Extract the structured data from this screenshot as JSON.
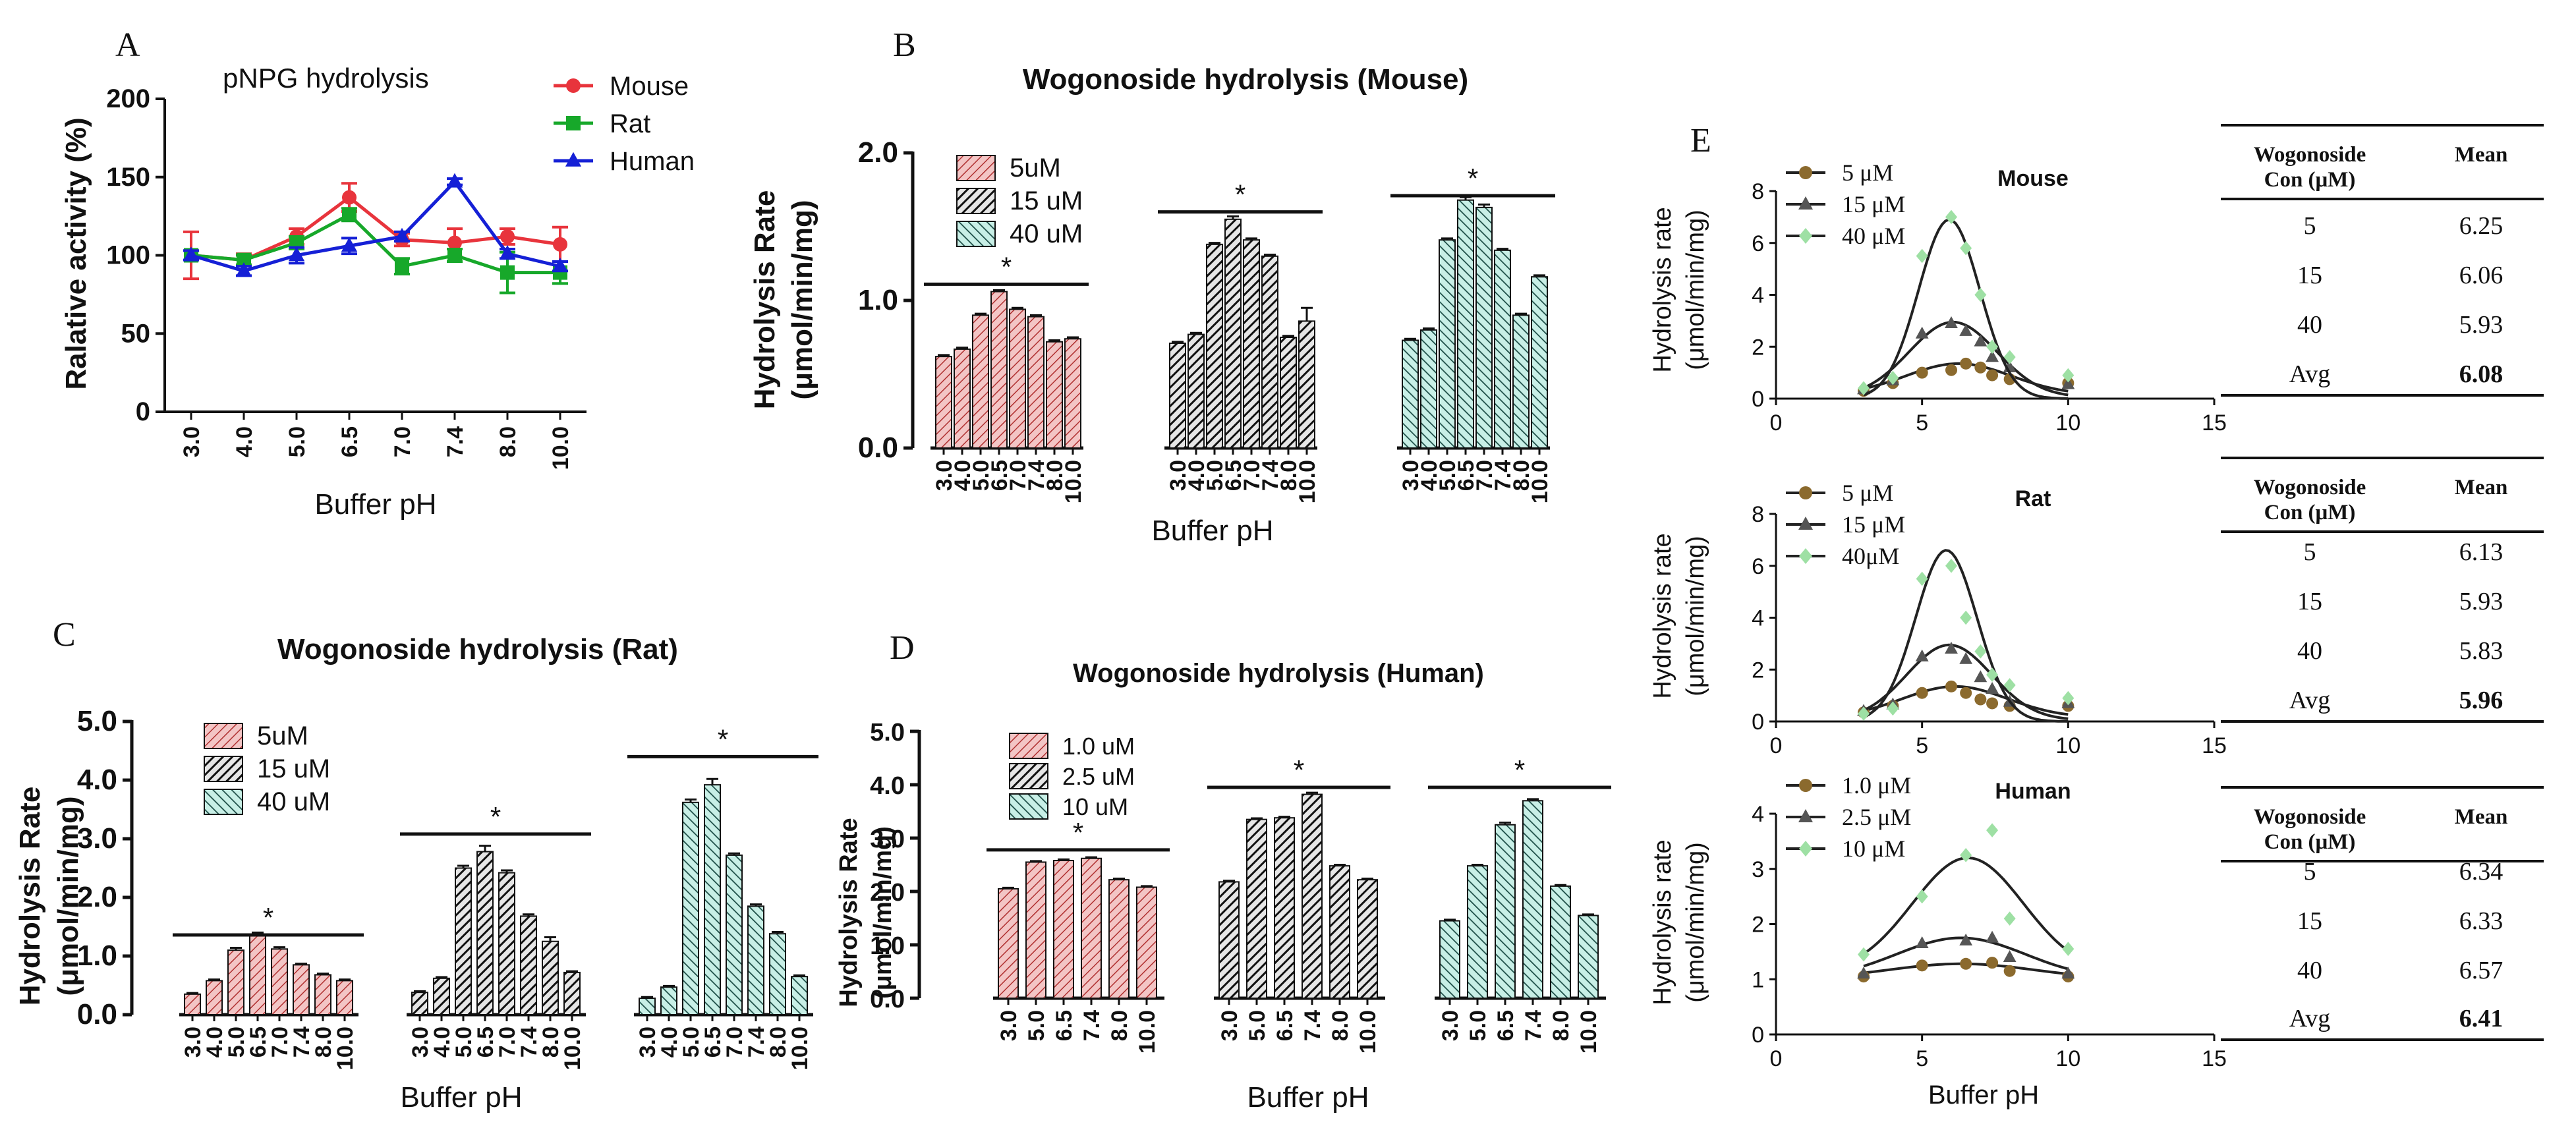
{
  "panels": {
    "A": {
      "letter": "A",
      "chart_data": {
        "type": "line",
        "title": "pNPG hydrolysis",
        "xlabel": "Buffer pH",
        "ylabel": "Ralative activity (%)",
        "categories": [
          "3.0",
          "4.0",
          "5.0",
          "6.5",
          "7.0",
          "7.4",
          "8.0",
          "10.0"
        ],
        "ylim": [
          0,
          200
        ],
        "yticks": [
          0,
          50,
          100,
          150,
          200
        ],
        "legend_position": "top-right",
        "series": [
          {
            "name": "Mouse",
            "color": "#e8343c",
            "marker": "circle",
            "values": [
              100,
              97,
              112,
              137,
              110,
              108,
              112,
              107
            ],
            "errors": [
              15,
              4,
              5,
              9,
              4,
              9,
              5,
              11
            ]
          },
          {
            "name": "Rat",
            "color": "#17a82a",
            "marker": "square",
            "values": [
              100,
              97,
              108,
              126,
              93,
              100,
              89,
              89
            ],
            "errors": [
              3,
              3,
              4,
              4,
              5,
              4,
              13,
              7
            ]
          },
          {
            "name": "Human",
            "color": "#1520d6",
            "marker": "triangle",
            "values": [
              100,
              90,
              100,
              106,
              112,
              147,
              101,
              93
            ],
            "errors": [
              3,
              3,
              5,
              5,
              3,
              2,
              3,
              3
            ]
          }
        ]
      }
    },
    "B": {
      "letter": "B",
      "chart_data": {
        "type": "bar",
        "title": "Wogonoside hydrolysis (Mouse)",
        "xlabel": "Buffer pH",
        "ylabel_line1": "Hydrolysis Rate",
        "ylabel_line2": "(μmol/min/mg)",
        "ylim": [
          0,
          2.0
        ],
        "yticks": [
          "0.0",
          "1.0",
          "2.0"
        ],
        "legend_position": "top-left",
        "significance": "*",
        "groups": [
          {
            "name": "5uM",
            "pattern": "pink",
            "categories": [
              "3.0",
              "4.0",
              "5.0",
              "6.5",
              "7.0",
              "7.4",
              "8.0",
              "10.0"
            ],
            "values": [
              0.62,
              0.67,
              0.9,
              1.06,
              0.94,
              0.89,
              0.72,
              0.74
            ],
            "errors": [
              0.01,
              0.01,
              0.01,
              0.01,
              0.01,
              0.01,
              0.01,
              0.01
            ]
          },
          {
            "name": "15 uM",
            "pattern": "dark",
            "categories": [
              "3.0",
              "4.0",
              "5.0",
              "6.5",
              "7.0",
              "7.4",
              "8.0",
              "10.0"
            ],
            "values": [
              0.71,
              0.77,
              1.38,
              1.55,
              1.41,
              1.3,
              0.75,
              0.86
            ],
            "errors": [
              0.01,
              0.01,
              0.01,
              0.02,
              0.01,
              0.01,
              0.01,
              0.09
            ]
          },
          {
            "name": "40 uM",
            "pattern": "teal",
            "categories": [
              "3.0",
              "4.0",
              "5.0",
              "6.5",
              "7.0",
              "7.4",
              "8.0",
              "10.0"
            ],
            "values": [
              0.73,
              0.8,
              1.41,
              1.68,
              1.63,
              1.34,
              0.9,
              1.16
            ],
            "errors": [
              0.01,
              0.01,
              0.01,
              0.02,
              0.02,
              0.01,
              0.01,
              0.01
            ]
          }
        ]
      }
    },
    "C": {
      "letter": "C",
      "chart_data": {
        "type": "bar",
        "title": "Wogonoside hydrolysis (Rat)",
        "xlabel": "Buffer pH",
        "ylabel_line1": "Hydrolysis Rate",
        "ylabel_line2": "(μmol/min/mg)",
        "ylim": [
          0,
          5.0
        ],
        "yticks": [
          "0.0",
          "1.0",
          "2.0",
          "3.0",
          "4.0",
          "5.0"
        ],
        "legend_position": "top-left",
        "significance": "*",
        "groups": [
          {
            "name": "5uM",
            "pattern": "pink",
            "categories": [
              "3.0",
              "4.0",
              "5.0",
              "6.5",
              "7.0",
              "7.4",
              "8.0",
              "10.0"
            ],
            "values": [
              0.35,
              0.58,
              1.1,
              1.35,
              1.12,
              0.85,
              0.68,
              0.58
            ],
            "errors": [
              0.02,
              0.02,
              0.04,
              0.05,
              0.03,
              0.02,
              0.02,
              0.02
            ]
          },
          {
            "name": "15 uM",
            "pattern": "dark",
            "categories": [
              "3.0",
              "4.0",
              "5.0",
              "6.5",
              "7.0",
              "7.4",
              "8.0",
              "10.0"
            ],
            "values": [
              0.38,
              0.62,
              2.5,
              2.78,
              2.42,
              1.68,
              1.25,
              0.72
            ],
            "errors": [
              0.02,
              0.02,
              0.04,
              0.1,
              0.04,
              0.03,
              0.07,
              0.02
            ]
          },
          {
            "name": "40 uM",
            "pattern": "teal",
            "categories": [
              "3.0",
              "4.0",
              "5.0",
              "6.5",
              "7.0",
              "7.4",
              "8.0",
              "10.0"
            ],
            "values": [
              0.28,
              0.47,
              3.62,
              3.92,
              2.72,
              1.85,
              1.38,
              0.65
            ],
            "errors": [
              0.02,
              0.02,
              0.05,
              0.1,
              0.03,
              0.03,
              0.03,
              0.02
            ]
          }
        ]
      }
    },
    "D": {
      "letter": "D",
      "chart_data": {
        "type": "bar",
        "title": "Wogonoside hydrolysis (Human)",
        "xlabel": "Buffer pH",
        "ylabel_line1": "Hydrolysis Rate",
        "ylabel_line2": "(μmol/min/mg)",
        "ylim": [
          0,
          5.0
        ],
        "yticks": [
          "0.0",
          "1.0",
          "2.0",
          "3.0",
          "4.0",
          "5.0"
        ],
        "legend_position": "top-left",
        "significance": "*",
        "groups": [
          {
            "name": "1.0 uM",
            "pattern": "pink",
            "categories": [
              "3.0",
              "5.0",
              "6.5",
              "7.4",
              "8.0",
              "10.0"
            ],
            "values": [
              2.05,
              2.55,
              2.58,
              2.62,
              2.22,
              2.08
            ],
            "errors": [
              0.02,
              0.02,
              0.02,
              0.02,
              0.02,
              0.02
            ]
          },
          {
            "name": "2.5 uM",
            "pattern": "dark",
            "categories": [
              "3.0",
              "5.0",
              "6.5",
              "7.4",
              "8.0",
              "10.0"
            ],
            "values": [
              2.18,
              3.35,
              3.38,
              3.82,
              2.48,
              2.22
            ],
            "errors": [
              0.02,
              0.02,
              0.02,
              0.03,
              0.02,
              0.02
            ]
          },
          {
            "name": "10 uM",
            "pattern": "teal",
            "categories": [
              "3.0",
              "5.0",
              "6.5",
              "7.4",
              "8.0",
              "10.0"
            ],
            "values": [
              1.45,
              2.48,
              3.25,
              3.7,
              2.1,
              1.55
            ],
            "errors": [
              0.02,
              0.02,
              0.04,
              0.03,
              0.02,
              0.02
            ]
          }
        ]
      }
    },
    "E": {
      "letter": "E",
      "xlabel": "Buffer pH",
      "ylabel_line1": "Hydrolysis rate",
      "ylabel_line2": "(μmol/min/mg)",
      "table_header": {
        "col1_line1": "Wogonoside",
        "col1_line2": "Con (μM)",
        "col2": "Mean"
      },
      "subplots": [
        {
          "chart_data": {
            "type": "scatter",
            "title": "Mouse",
            "xlim": [
              0,
              15
            ],
            "xticks": [
              "0",
              "5",
              "10",
              "15"
            ],
            "ylim": [
              0,
              8
            ],
            "yticks": [
              "0",
              "2",
              "4",
              "6",
              "8"
            ],
            "series": [
              {
                "name": "5 μM",
                "color": "#8b6a2e",
                "marker": "circle",
                "x": [
                  3,
                  4,
                  5,
                  6,
                  6.5,
                  7,
                  7.4,
                  8,
                  10
                ],
                "y": [
                  0.3,
                  0.6,
                  1.0,
                  1.1,
                  1.35,
                  1.2,
                  0.9,
                  0.75,
                  0.6
                ],
                "fit": {
                  "amp": 1.2,
                  "mu": 6.25,
                  "sigma": 1.8,
                  "base": 0.15
                }
              },
              {
                "name": "15 μM",
                "color": "#555555",
                "marker": "triangle",
                "x": [
                  3,
                  4,
                  5,
                  6,
                  6.5,
                  7,
                  7.4,
                  8,
                  10
                ],
                "y": [
                  0.35,
                  0.7,
                  2.5,
                  2.9,
                  2.6,
                  2.2,
                  1.6,
                  1.2,
                  0.55
                ],
                "fit": {
                  "amp": 2.9,
                  "mu": 6.06,
                  "sigma": 1.5,
                  "base": 0.05
                }
              },
              {
                "name": "40 μM",
                "color": "#9ee0a4",
                "marker": "diamond",
                "x": [
                  3,
                  4,
                  5,
                  6,
                  6.5,
                  7,
                  7.4,
                  8,
                  10
                ],
                "y": [
                  0.4,
                  0.8,
                  5.5,
                  7.0,
                  5.8,
                  4.0,
                  2.0,
                  1.6,
                  0.9
                ],
                "fit": {
                  "amp": 6.9,
                  "mu": 5.93,
                  "sigma": 1.05,
                  "base": 0.0
                }
              }
            ]
          },
          "table": [
            {
              "con": "5",
              "mean": "6.25"
            },
            {
              "con": "15",
              "mean": "6.06"
            },
            {
              "con": "40",
              "mean": "5.93"
            },
            {
              "con": "Avg",
              "mean": "6.08"
            }
          ]
        },
        {
          "chart_data": {
            "type": "scatter",
            "title": "Rat",
            "xlim": [
              0,
              15
            ],
            "xticks": [
              "0",
              "5",
              "10",
              "15"
            ],
            "ylim": [
              0,
              8
            ],
            "yticks": [
              "0",
              "2",
              "4",
              "6",
              "8"
            ],
            "series": [
              {
                "name": "5 μM",
                "color": "#8b6a2e",
                "marker": "circle",
                "x": [
                  3,
                  4,
                  5,
                  6,
                  6.5,
                  7,
                  7.4,
                  8,
                  10
                ],
                "y": [
                  0.35,
                  0.6,
                  1.1,
                  1.35,
                  1.1,
                  0.85,
                  0.7,
                  0.6,
                  0.6
                ],
                "fit": {
                  "amp": 1.2,
                  "mu": 6.13,
                  "sigma": 1.8,
                  "base": 0.15
                }
              },
              {
                "name": "15 μM",
                "color": "#555555",
                "marker": "triangle",
                "x": [
                  3,
                  4,
                  5,
                  6,
                  6.5,
                  7,
                  7.4,
                  8,
                  10
                ],
                "y": [
                  0.4,
                  0.65,
                  2.5,
                  2.8,
                  2.4,
                  1.7,
                  1.25,
                  0.75,
                  0.7
                ],
                "fit": {
                  "amp": 2.9,
                  "mu": 5.93,
                  "sigma": 1.45,
                  "base": 0.05
                }
              },
              {
                "name": "40μM",
                "color": "#9ee0a4",
                "marker": "diamond",
                "x": [
                  3,
                  4,
                  5,
                  6,
                  6.5,
                  7,
                  7.4,
                  8,
                  10
                ],
                "y": [
                  0.3,
                  0.5,
                  5.5,
                  6.0,
                  4.0,
                  2.7,
                  1.8,
                  1.4,
                  0.9
                ],
                "fit": {
                  "amp": 6.6,
                  "mu": 5.83,
                  "sigma": 1.05,
                  "base": 0.0
                }
              }
            ]
          },
          "table": [
            {
              "con": "5",
              "mean": "6.13"
            },
            {
              "con": "15",
              "mean": "5.93"
            },
            {
              "con": "40",
              "mean": "5.83"
            },
            {
              "con": "Avg",
              "mean": "5.96"
            }
          ]
        },
        {
          "chart_data": {
            "type": "scatter",
            "title": "Human",
            "xlim": [
              0,
              15
            ],
            "xticks": [
              "0",
              "5",
              "10",
              "15"
            ],
            "ylim": [
              0,
              4
            ],
            "yticks": [
              "0",
              "1",
              "2",
              "3",
              "4"
            ],
            "series": [
              {
                "name": "1.0 μM",
                "color": "#8b6a2e",
                "marker": "circle",
                "x": [
                  3,
                  5,
                  6.5,
                  7.4,
                  8,
                  10
                ],
                "y": [
                  1.05,
                  1.25,
                  1.28,
                  1.3,
                  1.15,
                  1.05
                ],
                "fit": {
                  "amp": 0.28,
                  "mu": 6.34,
                  "sigma": 2.5,
                  "base": 1.0
                }
              },
              {
                "name": "2.5 μM",
                "color": "#555555",
                "marker": "triangle",
                "x": [
                  3,
                  5,
                  6.5,
                  7.4,
                  8,
                  10
                ],
                "y": [
                  1.1,
                  1.65,
                  1.7,
                  1.75,
                  1.4,
                  1.1
                ],
                "fit": {
                  "amp": 0.75,
                  "mu": 6.33,
                  "sigma": 2.2,
                  "base": 1.0
                }
              },
              {
                "name": "10 μM",
                "color": "#9ee0a4",
                "marker": "diamond",
                "x": [
                  3,
                  5,
                  6.5,
                  7.4,
                  8,
                  10
                ],
                "y": [
                  1.45,
                  2.5,
                  3.25,
                  3.7,
                  2.1,
                  1.55
                ],
                "fit": {
                  "amp": 2.1,
                  "mu": 6.57,
                  "sigma": 1.9,
                  "base": 1.1
                }
              }
            ]
          },
          "table": [
            {
              "con": "5",
              "mean": "6.34"
            },
            {
              "con": "15",
              "mean": "6.33"
            },
            {
              "con": "40",
              "mean": "6.57"
            },
            {
              "con": "Avg",
              "mean": "6.41"
            }
          ]
        }
      ]
    }
  }
}
